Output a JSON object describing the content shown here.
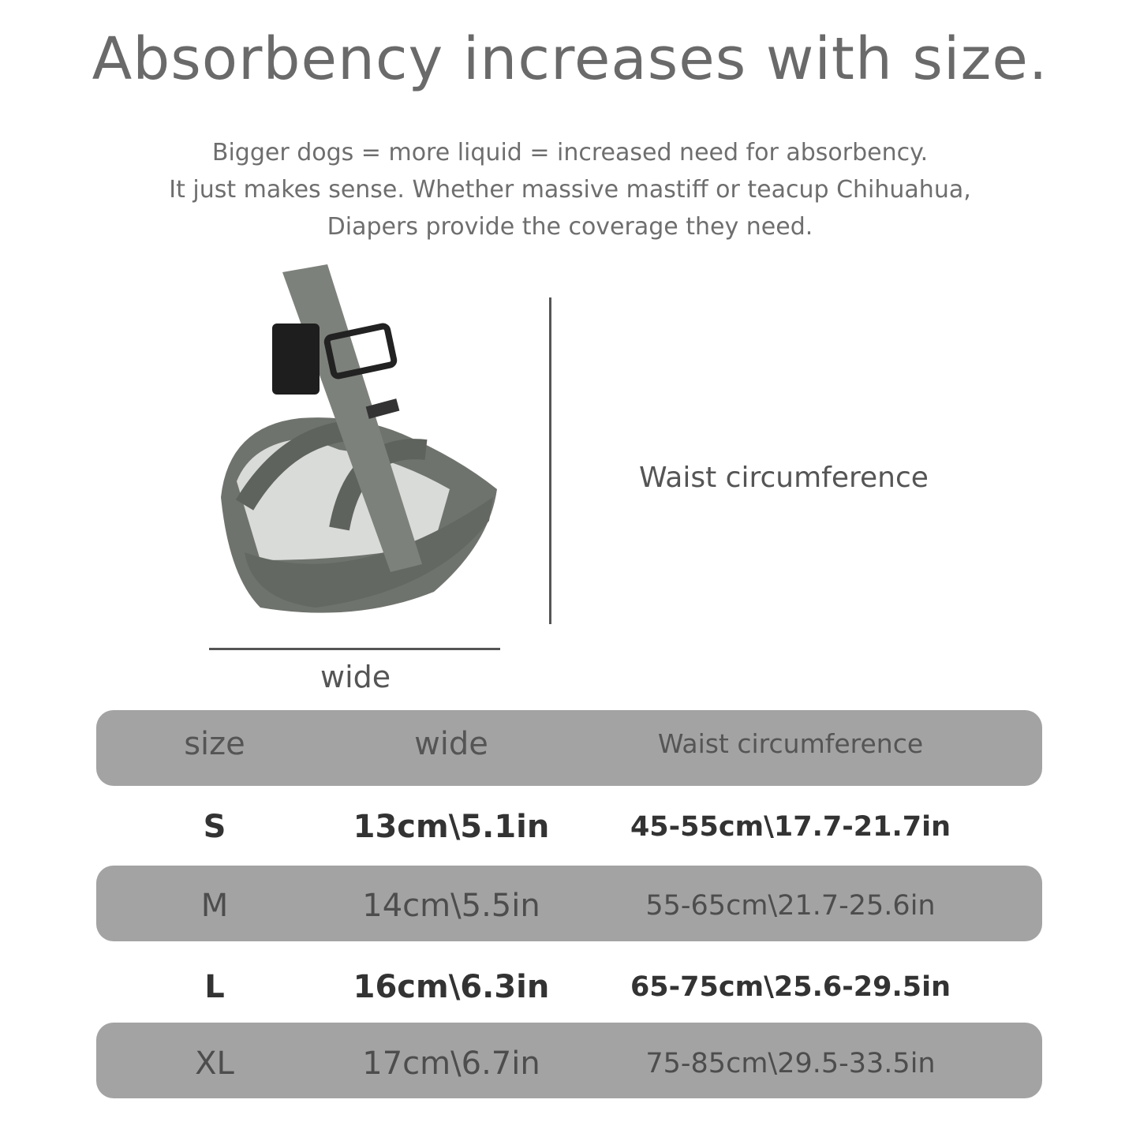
{
  "title": "Absorbency increases with size.",
  "subtitle_lines": [
    "Bigger dogs = more liquid = increased need for absorbency.",
    "It just makes sense. Whether massive mastiff or teacup Chihuahua,",
    "Diapers provide the coverage they need."
  ],
  "diagram": {
    "height_label": "Waist circumference",
    "width_label": "wide"
  },
  "table": {
    "headers": [
      "size",
      "wide",
      "Waist circumference"
    ],
    "rows": [
      [
        "S",
        "13cm\\5.1in",
        "45-55cm\\17.7-21.7in"
      ],
      [
        "M",
        "14cm\\5.5in",
        "55-65cm\\21.7-25.6in"
      ],
      [
        "L",
        "16cm\\6.3in",
        "65-75cm\\25.6-29.5in"
      ],
      [
        "XL",
        "17cm\\6.7in",
        "75-85cm\\29.5-33.5in"
      ]
    ]
  },
  "colors": {
    "band": "#a3a3a3",
    "product": "#6f736d",
    "text": "#555555"
  }
}
